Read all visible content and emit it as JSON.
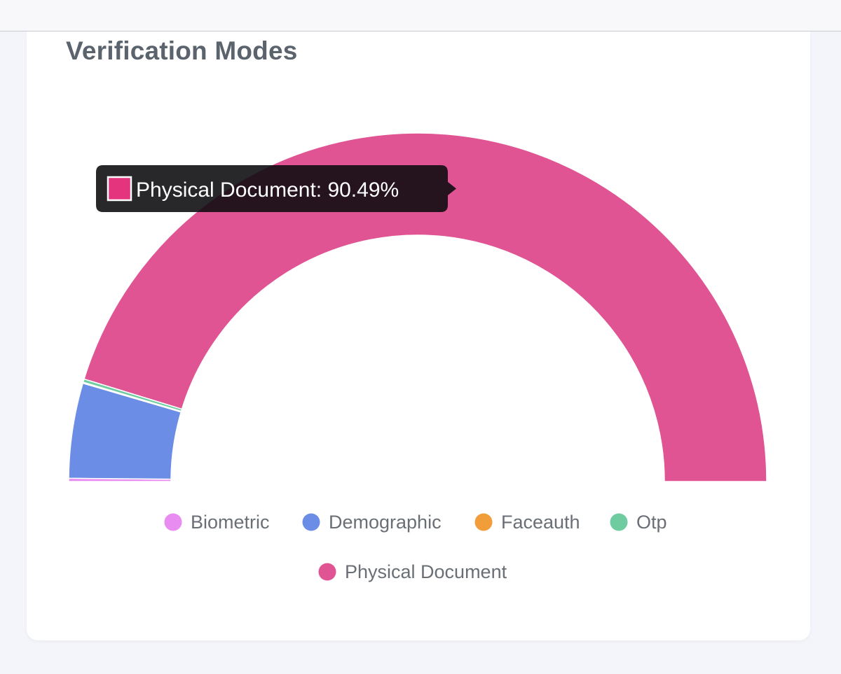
{
  "card": {
    "title": "Verification Modes"
  },
  "chart_data": {
    "type": "pie",
    "variant": "semi-doughnut",
    "categories": [
      "Biometric",
      "Demographic",
      "Faceauth",
      "Otp",
      "Physical Document"
    ],
    "values": [
      0.3,
      8.8,
      0.1,
      0.3,
      90.49
    ],
    "unit": "%",
    "colors": [
      "#e98cf1",
      "#6b8de6",
      "#f09d3a",
      "#6fcca0",
      "#e05493"
    ],
    "legend_position": "bottom",
    "tooltip": {
      "series": "Physical Document",
      "value_label": "90.49%",
      "swatch_color": "#e5347e"
    }
  }
}
